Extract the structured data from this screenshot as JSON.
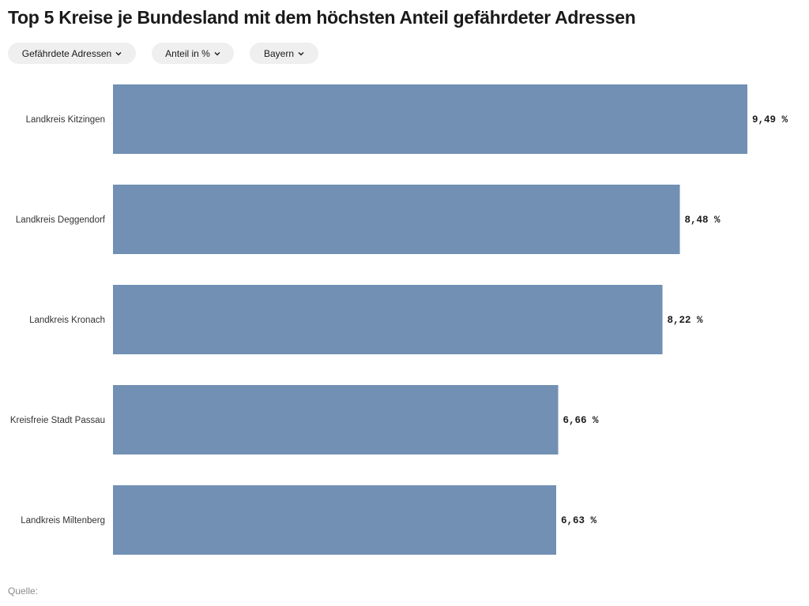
{
  "header": {
    "title": "Top 5 Kreise je Bundesland mit dem höchsten Anteil gefährdeter Adressen"
  },
  "filters": [
    {
      "label": "Gefährdete Adressen",
      "icon": "chevron-down-icon"
    },
    {
      "label": "Anteil in %",
      "icon": "chevron-down-icon"
    },
    {
      "label": "Bayern",
      "icon": "chevron-down-icon"
    }
  ],
  "footer": {
    "source_label": "Quelle:"
  },
  "chart_data": {
    "type": "bar",
    "orientation": "horizontal",
    "categories": [
      "Landkreis Kitzingen",
      "Landkreis Deggendorf",
      "Landkreis Kronach",
      "Kreisfreie Stadt Passau",
      "Landkreis Miltenberg"
    ],
    "values": [
      9.49,
      8.48,
      8.22,
      6.66,
      6.63
    ],
    "value_labels": [
      "9,49 %",
      "8,48 %",
      "8,22 %",
      "6,66 %",
      "6,63 %"
    ],
    "unit": "%",
    "bar_color": "#7190b4",
    "xlim": [
      0,
      9.49
    ],
    "grid": false,
    "legend": "none"
  }
}
